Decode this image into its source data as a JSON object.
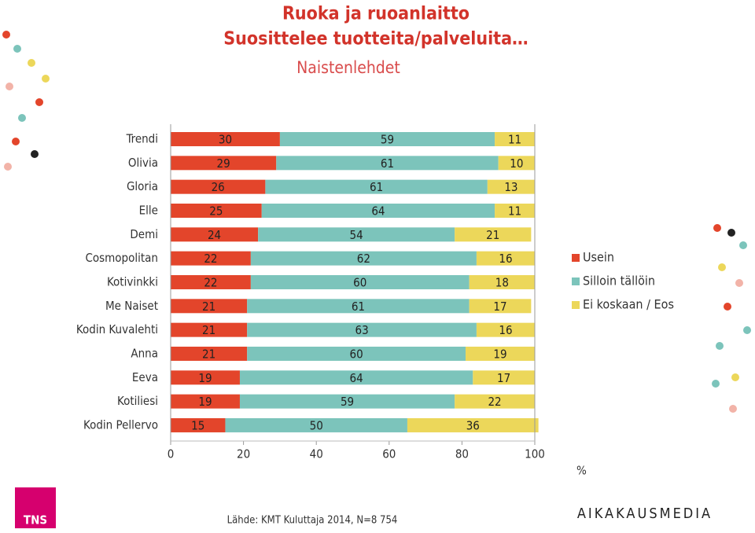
{
  "chart_data": {
    "type": "stacked-barh",
    "title": "Ruoka ja ruoanlaitto",
    "subtitle": "Suosittelee tuotteita/palveluita…",
    "subtitle2": "Naistenlehdet",
    "categories": [
      "Trendi",
      "Olivia",
      "Gloria",
      "Elle",
      "Demi",
      "Cosmopolitan",
      "Kotivinkki",
      "Me Naiset",
      "Kodin Kuvalehti",
      "Anna",
      "Eeva",
      "Kotiliesi",
      "Kodin Pellervo"
    ],
    "series": [
      {
        "name": "Usein",
        "color": "#e3452b",
        "values": [
          30,
          29,
          26,
          25,
          24,
          22,
          22,
          21,
          21,
          21,
          19,
          19,
          15
        ]
      },
      {
        "name": "Silloin tällöin",
        "color": "#7cc4bb",
        "values": [
          59,
          61,
          61,
          64,
          54,
          62,
          60,
          61,
          63,
          60,
          64,
          59,
          50
        ]
      },
      {
        "name": "Ei koskaan / Eos",
        "color": "#ecd75a",
        "values": [
          11,
          10,
          13,
          11,
          21,
          16,
          18,
          17,
          16,
          19,
          17,
          22,
          36
        ]
      }
    ],
    "xlim": [
      0,
      100
    ],
    "xticks": [
      0,
      20,
      40,
      60,
      80,
      100
    ],
    "x_unit": "%",
    "legend": "right",
    "source": "Lähde: KMT Kuluttaja 2014, N=8 754",
    "logo_left": "TNS",
    "logo_right": "AIKAKAUSMEDIA"
  }
}
